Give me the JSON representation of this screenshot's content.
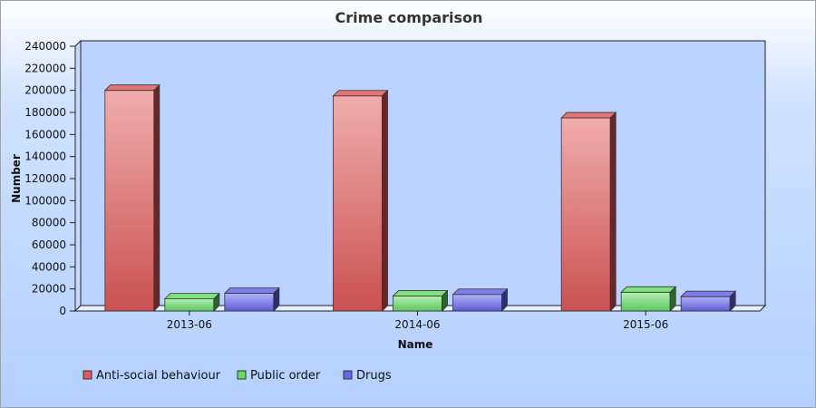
{
  "chart_data": {
    "type": "bar",
    "title": "Crime comparison",
    "xlabel": "Name",
    "ylabel": "Number",
    "categories": [
      "2013-06",
      "2014-06",
      "2015-06"
    ],
    "ylim": [
      0,
      240000
    ],
    "yticks": [
      0,
      20000,
      40000,
      60000,
      80000,
      100000,
      120000,
      140000,
      160000,
      180000,
      200000,
      220000,
      240000
    ],
    "grid": false,
    "legend_position": "bottom-left",
    "series": [
      {
        "name": "Anti-social behaviour",
        "values": [
          200000,
          195000,
          175000
        ],
        "color": "#e05a5a"
      },
      {
        "name": "Public order",
        "values": [
          11000,
          13500,
          17000
        ],
        "color": "#66dd66"
      },
      {
        "name": "Drugs",
        "values": [
          16000,
          15000,
          13000
        ],
        "color": "#6666ee"
      }
    ]
  }
}
